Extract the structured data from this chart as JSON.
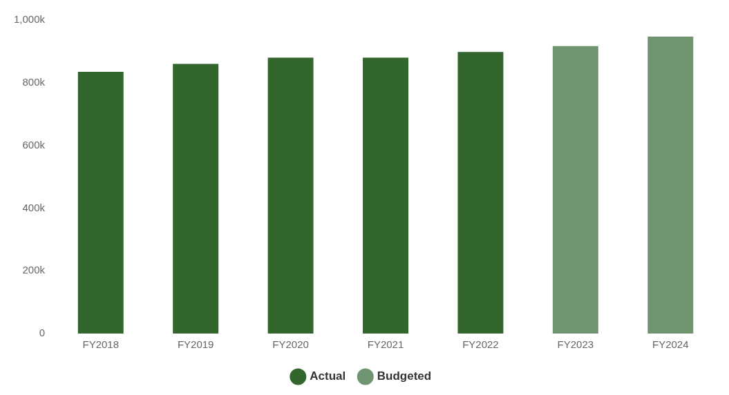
{
  "chart_data": {
    "type": "bar",
    "stacked": true,
    "categories": [
      "FY2018",
      "FY2019",
      "FY2020",
      "FY2021",
      "FY2022",
      "FY2023",
      "FY2024"
    ],
    "series": [
      {
        "name": "Actual",
        "color": "#33662d",
        "values": [
          835000,
          860000,
          880000,
          880000,
          898000,
          null,
          null
        ]
      },
      {
        "name": "Budgeted",
        "color": "#6e9470",
        "values": [
          null,
          null,
          null,
          null,
          null,
          917000,
          947000
        ]
      }
    ],
    "ylim": [
      0,
      1000000
    ],
    "yticks": [
      {
        "value": 0,
        "label": "0"
      },
      {
        "value": 200000,
        "label": "200k"
      },
      {
        "value": 400000,
        "label": "400k"
      },
      {
        "value": 600000,
        "label": "600k"
      },
      {
        "value": 800000,
        "label": "800k"
      },
      {
        "value": 1000000,
        "label": "1,000k"
      }
    ],
    "grid": false,
    "legend": "bottom"
  }
}
